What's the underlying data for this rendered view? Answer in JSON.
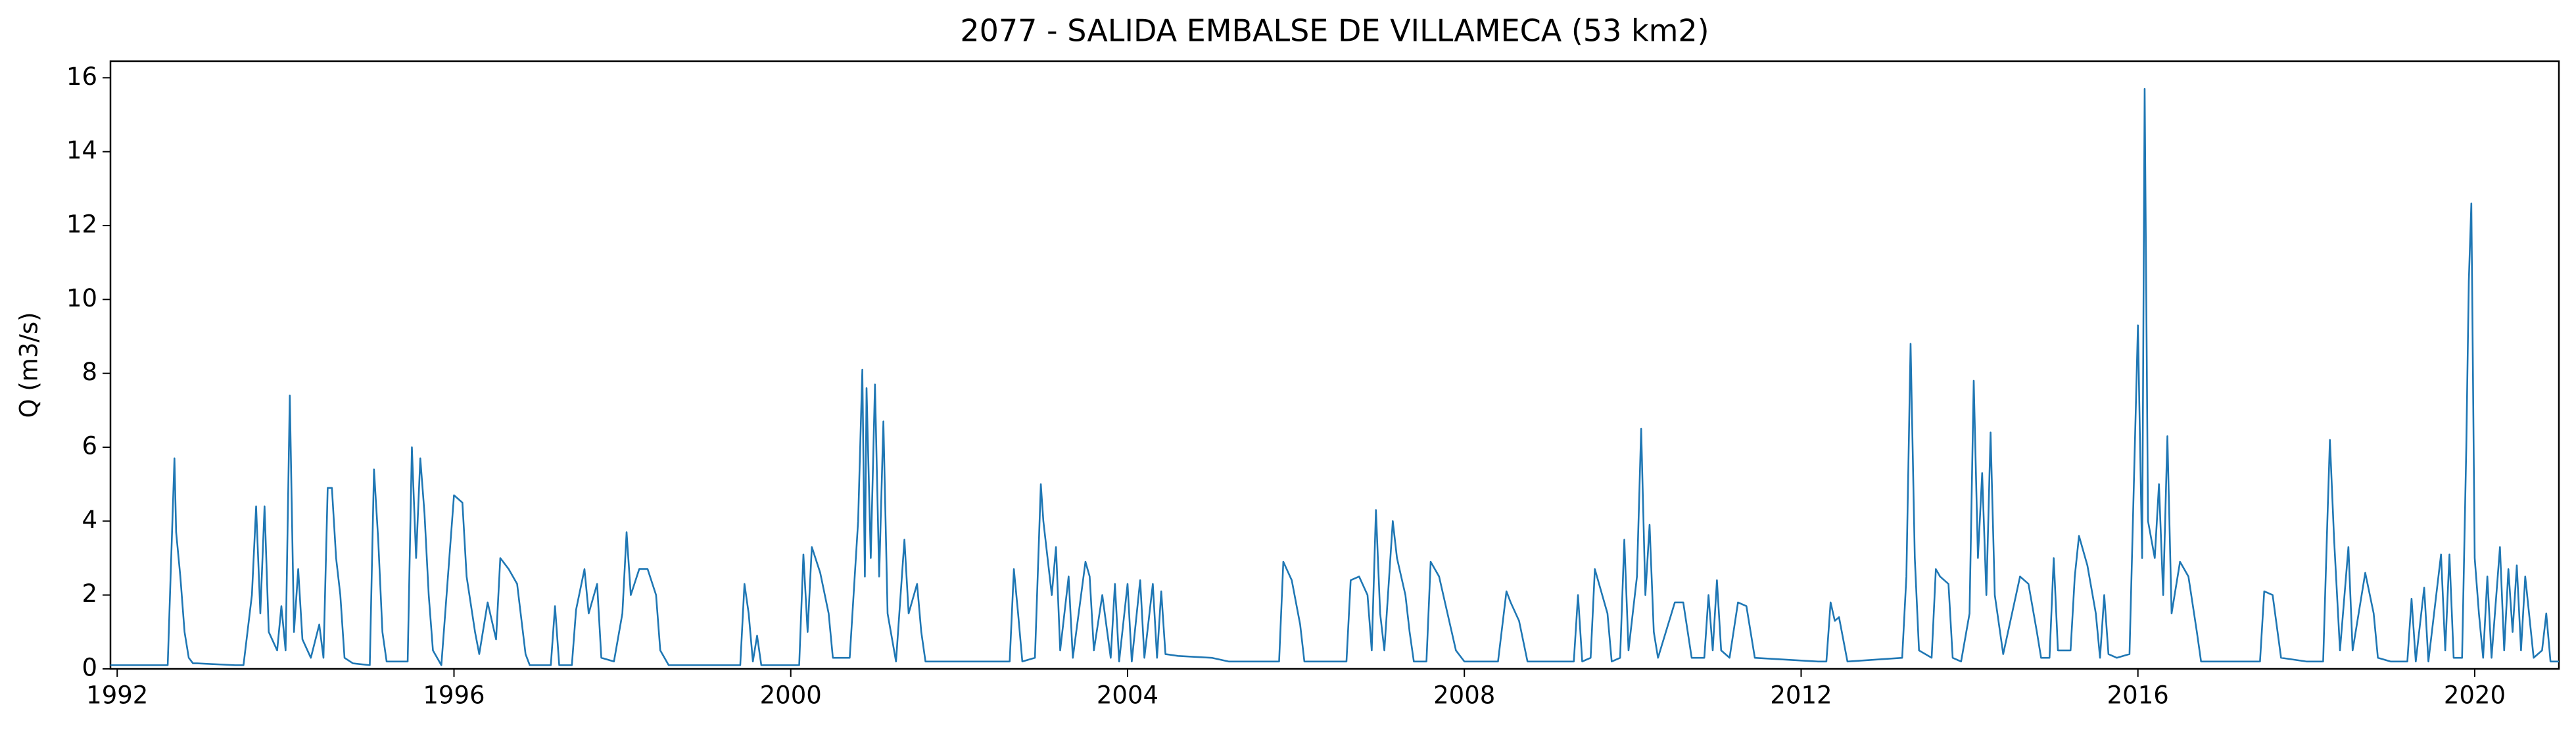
{
  "chart_data": {
    "type": "line",
    "title": "2077 - SALIDA EMBALSE DE VILLAMECA (53 km2)",
    "ylabel": "Q (m3/s)",
    "color": "#1f77b4",
    "xlim": [
      1991.92,
      2021.0
    ],
    "xticks": [
      1992,
      1996,
      2000,
      2004,
      2008,
      2012,
      2016,
      2020
    ],
    "ylim": [
      0,
      16.45
    ],
    "yticks": [
      0,
      2,
      4,
      6,
      8,
      10,
      12,
      14,
      16
    ],
    "x": [
      1991.92,
      1992.6,
      1992.68,
      1992.7,
      1992.75,
      1992.8,
      1992.85,
      1992.9,
      1992.95,
      1993.4,
      1993.5,
      1993.6,
      1993.65,
      1993.7,
      1993.75,
      1993.8,
      1993.9,
      1993.95,
      1994.0,
      1994.05,
      1994.1,
      1994.15,
      1994.2,
      1994.3,
      1994.4,
      1994.45,
      1994.5,
      1994.55,
      1994.6,
      1994.65,
      1994.7,
      1994.8,
      1995.0,
      1995.05,
      1995.1,
      1995.15,
      1995.2,
      1995.45,
      1995.5,
      1995.55,
      1995.6,
      1995.65,
      1995.7,
      1995.75,
      1995.85,
      1996.0,
      1996.1,
      1996.15,
      1996.25,
      1996.3,
      1996.4,
      1996.5,
      1996.55,
      1996.65,
      1996.75,
      1996.85,
      1996.9,
      1997.15,
      1997.2,
      1997.25,
      1997.4,
      1997.45,
      1997.55,
      1997.6,
      1997.7,
      1997.75,
      1997.9,
      1998.0,
      1998.05,
      1998.1,
      1998.2,
      1998.3,
      1998.4,
      1998.45,
      1998.55,
      1999.4,
      1999.45,
      1999.5,
      1999.55,
      1999.6,
      1999.65,
      2000.1,
      2000.15,
      2000.2,
      2000.25,
      2000.35,
      2000.45,
      2000.5,
      2000.7,
      2000.8,
      2000.85,
      2000.88,
      2000.9,
      2000.95,
      2001.0,
      2001.05,
      2001.1,
      2001.15,
      2001.25,
      2001.35,
      2001.4,
      2001.5,
      2001.55,
      2001.6,
      2002.6,
      2002.65,
      2002.7,
      2002.75,
      2002.9,
      2002.97,
      2003.0,
      2003.1,
      2003.15,
      2003.2,
      2003.3,
      2003.35,
      2003.5,
      2003.55,
      2003.6,
      2003.7,
      2003.8,
      2003.85,
      2003.9,
      2004.0,
      2004.05,
      2004.15,
      2004.2,
      2004.3,
      2004.35,
      2004.4,
      2004.45,
      2004.6,
      2005.0,
      2005.2,
      2005.8,
      2005.85,
      2005.95,
      2006.05,
      2006.1,
      2006.6,
      2006.65,
      2006.75,
      2006.85,
      2006.9,
      2006.95,
      2007.0,
      2007.05,
      2007.15,
      2007.2,
      2007.3,
      2007.35,
      2007.4,
      2007.55,
      2007.6,
      2007.7,
      2007.8,
      2007.9,
      2008.0,
      2008.4,
      2008.5,
      2008.55,
      2008.65,
      2008.75,
      2009.3,
      2009.35,
      2009.4,
      2009.5,
      2009.55,
      2009.6,
      2009.7,
      2009.75,
      2009.85,
      2009.9,
      2009.95,
      2010.05,
      2010.1,
      2010.15,
      2010.2,
      2010.25,
      2010.3,
      2010.5,
      2010.6,
      2010.7,
      2010.85,
      2010.9,
      2010.95,
      2011.0,
      2011.05,
      2011.15,
      2011.25,
      2011.35,
      2011.45,
      2012.2,
      2012.3,
      2012.35,
      2012.4,
      2012.45,
      2012.55,
      2013.2,
      2013.25,
      2013.3,
      2013.35,
      2013.4,
      2013.55,
      2013.6,
      2013.65,
      2013.75,
      2013.8,
      2013.9,
      2014.0,
      2014.05,
      2014.1,
      2014.15,
      2014.2,
      2014.25,
      2014.3,
      2014.4,
      2014.6,
      2014.7,
      2014.8,
      2014.85,
      2014.95,
      2015.0,
      2015.05,
      2015.2,
      2015.25,
      2015.3,
      2015.4,
      2015.5,
      2015.55,
      2015.6,
      2015.65,
      2015.75,
      2015.9,
      2016.0,
      2016.05,
      2016.08,
      2016.12,
      2016.2,
      2016.25,
      2016.3,
      2016.35,
      2016.4,
      2016.5,
      2016.6,
      2016.7,
      2016.75,
      2017.45,
      2017.5,
      2017.6,
      2017.7,
      2018.0,
      2018.2,
      2018.25,
      2018.28,
      2018.33,
      2018.4,
      2018.5,
      2018.55,
      2018.7,
      2018.8,
      2018.85,
      2019.0,
      2019.2,
      2019.25,
      2019.3,
      2019.4,
      2019.45,
      2019.6,
      2019.65,
      2019.7,
      2019.75,
      2019.85,
      2019.9,
      2019.93,
      2019.96,
      2020.0,
      2020.05,
      2020.1,
      2020.15,
      2020.2,
      2020.3,
      2020.35,
      2020.4,
      2020.45,
      2020.5,
      2020.55,
      2020.6,
      2020.7,
      2020.8,
      2020.85,
      2020.9,
      2021.0
    ],
    "values": [
      0.1,
      0.1,
      5.7,
      3.7,
      2.5,
      1.0,
      0.3,
      0.15,
      0.15,
      0.1,
      0.1,
      2.0,
      4.4,
      1.5,
      4.4,
      1.0,
      0.5,
      1.7,
      0.5,
      7.4,
      1.0,
      2.7,
      0.8,
      0.3,
      1.2,
      0.3,
      4.9,
      4.9,
      3.0,
      2.0,
      0.3,
      0.15,
      0.1,
      5.4,
      3.5,
      1.0,
      0.2,
      0.2,
      6.0,
      3.0,
      5.7,
      4.2,
      2.0,
      0.5,
      0.1,
      4.7,
      4.5,
      2.5,
      1.0,
      0.4,
      1.8,
      0.8,
      3.0,
      2.7,
      2.3,
      0.4,
      0.1,
      0.1,
      1.7,
      0.1,
      0.1,
      1.6,
      2.7,
      1.5,
      2.3,
      0.3,
      0.2,
      1.5,
      3.7,
      2.0,
      2.7,
      2.7,
      2.0,
      0.5,
      0.1,
      0.1,
      2.3,
      1.5,
      0.2,
      0.9,
      0.1,
      0.1,
      3.1,
      1.0,
      3.3,
      2.6,
      1.5,
      0.3,
      0.3,
      4.0,
      8.1,
      2.5,
      7.6,
      3.0,
      7.7,
      2.5,
      6.7,
      1.5,
      0.2,
      3.5,
      1.5,
      2.3,
      1.0,
      0.2,
      0.2,
      2.7,
      1.5,
      0.2,
      0.3,
      5.0,
      4.0,
      2.0,
      3.3,
      0.5,
      2.5,
      0.3,
      2.9,
      2.5,
      0.5,
      2.0,
      0.3,
      2.3,
      0.2,
      2.3,
      0.2,
      2.4,
      0.3,
      2.3,
      0.3,
      2.1,
      0.4,
      0.35,
      0.3,
      0.2,
      0.2,
      2.9,
      2.4,
      1.2,
      0.2,
      0.2,
      2.4,
      2.5,
      2.0,
      0.5,
      4.3,
      1.5,
      0.5,
      4.0,
      3.0,
      2.0,
      1.0,
      0.2,
      0.2,
      2.9,
      2.5,
      1.5,
      0.5,
      0.2,
      0.2,
      2.1,
      1.8,
      1.3,
      0.2,
      0.2,
      2.0,
      0.2,
      0.3,
      2.7,
      2.3,
      1.5,
      0.2,
      0.3,
      3.5,
      0.5,
      2.5,
      6.5,
      2.0,
      3.9,
      1.0,
      0.3,
      1.8,
      1.8,
      0.3,
      0.3,
      2.0,
      0.5,
      2.4,
      0.5,
      0.3,
      1.8,
      1.7,
      0.3,
      0.2,
      0.2,
      1.8,
      1.3,
      1.4,
      0.2,
      0.3,
      2.5,
      8.8,
      3.0,
      0.5,
      0.3,
      2.7,
      2.5,
      2.3,
      0.3,
      0.2,
      1.5,
      7.8,
      3.0,
      5.3,
      2.0,
      6.4,
      2.0,
      0.4,
      2.5,
      2.3,
      1.0,
      0.3,
      0.3,
      3.0,
      0.5,
      0.5,
      2.5,
      3.6,
      2.8,
      1.5,
      0.3,
      2.0,
      0.4,
      0.3,
      0.4,
      9.3,
      3.0,
      15.7,
      4.0,
      3.0,
      5.0,
      2.0,
      6.3,
      1.5,
      2.9,
      2.5,
      1.0,
      0.2,
      0.2,
      2.1,
      2.0,
      0.3,
      0.2,
      0.2,
      4.0,
      6.2,
      3.5,
      0.5,
      3.3,
      0.5,
      2.6,
      1.5,
      0.3,
      0.2,
      0.2,
      1.9,
      0.2,
      2.2,
      0.2,
      3.1,
      0.5,
      3.1,
      0.3,
      0.3,
      6.0,
      10.5,
      12.6,
      3.0,
      1.5,
      0.3,
      2.5,
      0.3,
      3.3,
      0.5,
      2.7,
      1.0,
      2.8,
      0.5,
      2.5,
      0.3,
      0.5,
      1.5,
      0.2,
      0.2
    ]
  }
}
